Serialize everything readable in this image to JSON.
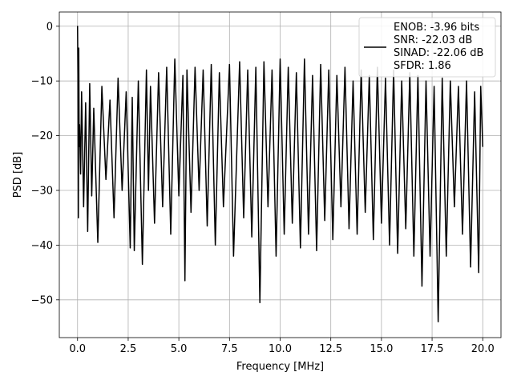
{
  "chart_data": {
    "type": "line",
    "title": "",
    "xlabel": "Frequency [MHz]",
    "ylabel": "PSD [dB]",
    "xlim": [
      -0.9,
      20.9
    ],
    "ylim": [
      -56.9,
      2.6
    ],
    "xticks": [
      0.0,
      2.5,
      5.0,
      7.5,
      10.0,
      12.5,
      15.0,
      17.5,
      20.0
    ],
    "xtick_labels": [
      "0.0",
      "2.5",
      "5.0",
      "7.5",
      "10.0",
      "12.5",
      "15.0",
      "17.5",
      "20.0"
    ],
    "yticks": [
      0,
      -10,
      -20,
      -30,
      -40,
      -50
    ],
    "ytick_labels": [
      "0",
      "−10",
      "−20",
      "−30",
      "−40",
      "−50"
    ],
    "grid": true,
    "legend": {
      "placement": "upper right",
      "entries": [
        "ENOB: -3.96 bits",
        "SNR: -22.03 dB",
        "SINAD: -22.06 dB",
        "SFDR: 1.86"
      ]
    },
    "line_color": "#000000",
    "series": [
      {
        "x": [
          0.0,
          0.02,
          0.04,
          0.06,
          0.08,
          0.1,
          0.15,
          0.2,
          0.3,
          0.4,
          0.5,
          0.6,
          0.7,
          0.8,
          1.0,
          1.2,
          1.4,
          1.6,
          1.8,
          2.0,
          2.2,
          2.4,
          2.6,
          2.7,
          2.8,
          3.0,
          3.2,
          3.4,
          3.5,
          3.6,
          3.8,
          4.0,
          4.2,
          4.4,
          4.6,
          4.8,
          5.0,
          5.2,
          5.3,
          5.4,
          5.6,
          5.8,
          6.0,
          6.2,
          6.4,
          6.6,
          6.8,
          7.0,
          7.2,
          7.5,
          7.7,
          8.0,
          8.2,
          8.4,
          8.6,
          8.8,
          9.0,
          9.2,
          9.4,
          9.6,
          9.8,
          10.0,
          10.2,
          10.4,
          10.6,
          10.8,
          11.0,
          11.2,
          11.4,
          11.6,
          11.8,
          12.0,
          12.2,
          12.4,
          12.6,
          12.8,
          13.0,
          13.2,
          13.4,
          13.6,
          13.8,
          14.0,
          14.2,
          14.4,
          14.6,
          14.8,
          15.0,
          15.2,
          15.4,
          15.6,
          15.8,
          16.0,
          16.2,
          16.4,
          16.6,
          16.8,
          17.0,
          17.2,
          17.4,
          17.6,
          17.8,
          18.0,
          18.2,
          18.4,
          18.6,
          18.8,
          19.0,
          19.2,
          19.4,
          19.6,
          19.8,
          19.9,
          20.0
        ],
        "y": [
          0.0,
          -9.0,
          -35.0,
          -4.0,
          -22.0,
          -18.0,
          -27.0,
          -12.0,
          -33.0,
          -14.0,
          -37.5,
          -10.5,
          -31.0,
          -15.0,
          -39.5,
          -11.0,
          -28.0,
          -13.5,
          -35.0,
          -9.5,
          -30.0,
          -12.0,
          -40.5,
          -13.0,
          -41.0,
          -10.0,
          -43.5,
          -8.0,
          -30.0,
          -11.0,
          -36.0,
          -8.5,
          -33.0,
          -7.5,
          -38.0,
          -6.0,
          -31.0,
          -9.0,
          -46.5,
          -8.0,
          -34.0,
          -7.5,
          -30.0,
          -8.0,
          -36.5,
          -7.0,
          -40.0,
          -8.5,
          -33.0,
          -7.0,
          -42.0,
          -6.5,
          -35.0,
          -8.0,
          -38.5,
          -7.5,
          -50.5,
          -6.5,
          -33.0,
          -8.0,
          -42.0,
          -6.0,
          -38.0,
          -7.5,
          -36.0,
          -8.5,
          -40.5,
          -6.0,
          -38.0,
          -9.0,
          -41.0,
          -7.0,
          -35.5,
          -8.0,
          -39.0,
          -9.0,
          -33.0,
          -7.5,
          -37.0,
          -10.0,
          -38.0,
          -8.0,
          -34.0,
          -9.0,
          -39.0,
          -7.5,
          -36.0,
          -9.5,
          -40.0,
          -8.0,
          -41.5,
          -10.0,
          -37.0,
          -8.5,
          -42.0,
          -9.0,
          -47.5,
          -10.0,
          -42.0,
          -11.0,
          -54.0,
          -9.5,
          -42.0,
          -10.0,
          -33.0,
          -11.0,
          -38.0,
          -10.0,
          -44.0,
          -12.0,
          -45.0,
          -11.0,
          -22.0
        ]
      }
    ]
  }
}
